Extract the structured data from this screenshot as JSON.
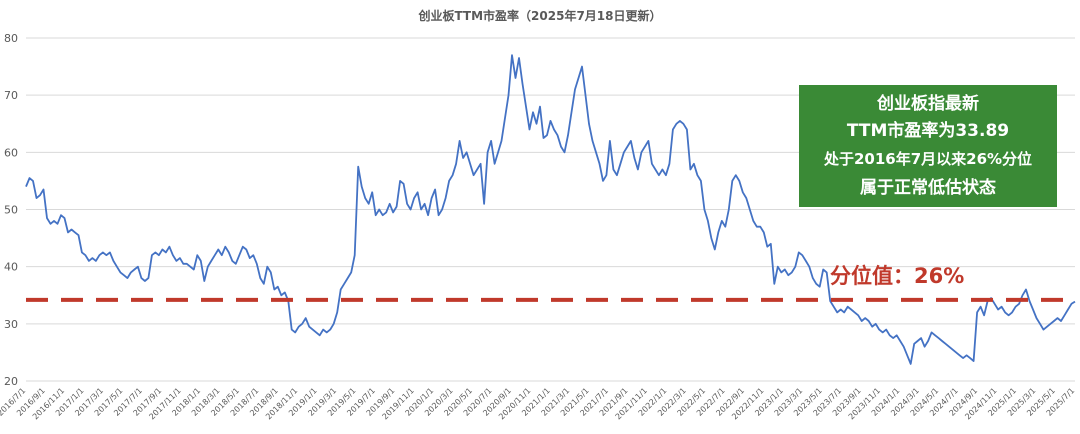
{
  "chart_data": {
    "type": "line",
    "title": "创业板TTM市盈率（2025年7月18日更新）",
    "ylim": [
      20,
      80
    ],
    "yticks": [
      20,
      30,
      40,
      50,
      60,
      70,
      80
    ],
    "grid": true,
    "x_tick_labels": [
      "2016/7/1",
      "2016/9/1",
      "2016/11/1",
      "2017/1/1",
      "2017/3/1",
      "2017/5/1",
      "2017/7/1",
      "2017/9/1",
      "2017/11/1",
      "2018/1/1",
      "2018/3/1",
      "2018/5/1",
      "2018/7/1",
      "2018/9/1",
      "2018/11/1",
      "2019/1/1",
      "2019/3/1",
      "2019/5/1",
      "2019/7/1",
      "2019/9/1",
      "2019/11/1",
      "2020/1/1",
      "2020/3/1",
      "2020/5/1",
      "2020/7/1",
      "2020/9/1",
      "2020/11/1",
      "2021/1/1",
      "2021/3/1",
      "2021/5/1",
      "2021/7/1",
      "2021/9/1",
      "2021/11/1",
      "2022/1/1",
      "2022/3/1",
      "2022/5/1",
      "2022/7/1",
      "2022/9/1",
      "2022/11/1",
      "2023/1/1",
      "2023/3/1",
      "2023/5/1",
      "2023/7/1",
      "2023/9/1",
      "2023/11/1",
      "2024/1/1",
      "2024/3/1",
      "2024/5/1",
      "2024/7/1",
      "2024/9/1",
      "2024/11/1",
      "2025/1/1",
      "2025/3/1",
      "2025/5/1",
      "2025/7/1"
    ],
    "series": [
      {
        "values": [
          54,
          55.5,
          55,
          52,
          52.5,
          53.5,
          48.5,
          47.5,
          48,
          47.5,
          49,
          48.5,
          46,
          46.5,
          46,
          45.5,
          42.5,
          42,
          41,
          41.5,
          41,
          42,
          42.5,
          42,
          42.5,
          41,
          40,
          39,
          38.5,
          38,
          39,
          39.5,
          40,
          38,
          37.5,
          38,
          42,
          42.5,
          42,
          43,
          42.5,
          43.5,
          42,
          41,
          41.5,
          40.5,
          40.5,
          40,
          39.5,
          42,
          41,
          37.5,
          40,
          41,
          42,
          43,
          42,
          43.5,
          42.5,
          41,
          40.5,
          42,
          43.5,
          43,
          41.5,
          42,
          40.5,
          38,
          37,
          40,
          39,
          36,
          36.5,
          35,
          35.5,
          34,
          29,
          28.5,
          29.5,
          30,
          31,
          29.5,
          29,
          28.5,
          28,
          29,
          28.5,
          29,
          30,
          32,
          36,
          37,
          38,
          39,
          42,
          57.5,
          54,
          52,
          51,
          53,
          49,
          50,
          49,
          49.5,
          51,
          49.5,
          50.5,
          55,
          54.5,
          51,
          50,
          52,
          53,
          50,
          51,
          49,
          52,
          53.5,
          49,
          50,
          52,
          55,
          56,
          58,
          62,
          59,
          60,
          58,
          56,
          57,
          58,
          51,
          60,
          62,
          58,
          60,
          62,
          66,
          70,
          77,
          73,
          76.5,
          72,
          68,
          64,
          67,
          65,
          68,
          62.5,
          63,
          65.5,
          64,
          63,
          61,
          60,
          63,
          67,
          71,
          73,
          75,
          70,
          65,
          62,
          60,
          58,
          55,
          56,
          62,
          57,
          56,
          58,
          60,
          61,
          62,
          59,
          57,
          60,
          61,
          62,
          58,
          57,
          56,
          57,
          56,
          58,
          64,
          65,
          65.5,
          65,
          64,
          57,
          58,
          56,
          55,
          50,
          48,
          45,
          43,
          46,
          48,
          47,
          50,
          55,
          56,
          55,
          53,
          52,
          50,
          48,
          47,
          47,
          46,
          43.5,
          44,
          37,
          40,
          39,
          39.5,
          38.5,
          39,
          40,
          42.5,
          42,
          41,
          40,
          38,
          37,
          36.5,
          39.5,
          39,
          34,
          33,
          32,
          32.5,
          32,
          33,
          32.5,
          32,
          31.5,
          30.5,
          31,
          30.5,
          29.5,
          30,
          29,
          28.5,
          29,
          28,
          27.5,
          28,
          27,
          26,
          24.5,
          23,
          26.5,
          27,
          27.5,
          26,
          27,
          28.5,
          28,
          27.5,
          27,
          26.5,
          26,
          25.5,
          25,
          24.5,
          24,
          24.5,
          24,
          23.5,
          32,
          33,
          31.5,
          34,
          34.5,
          33.5,
          32.5,
          33,
          32,
          31.5,
          32,
          33,
          33.5,
          35,
          36,
          34,
          32.5,
          31,
          30,
          29,
          29.5,
          30,
          30.5,
          31,
          30.5,
          31.5,
          32.5,
          33.5,
          33.89
        ]
      }
    ],
    "reference_line": {
      "value": 34.2,
      "label": "分位值：26%",
      "color": "#c0392b"
    },
    "callout": {
      "lines": [
        "创业板指最新",
        "TTM市盈率为33.89",
        "处于2016年7月以来26%分位",
        "属于正常低估状态"
      ],
      "background": "#3a8a36"
    },
    "line_color": "#4472c4"
  }
}
